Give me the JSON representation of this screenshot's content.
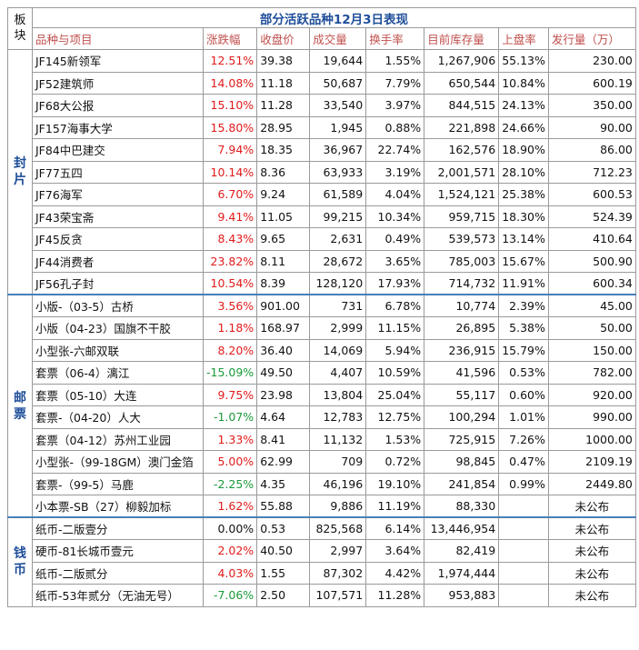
{
  "title": "部分活跃品种12月3日表现",
  "corner_label": "板块",
  "headers": [
    "品种与项目",
    "涨跌幅",
    "收盘价",
    "成交量",
    "换手率",
    "目前库存量",
    "上盘率",
    "发行量（万）"
  ],
  "sections": [
    {
      "label": "封片",
      "rows": [
        {
          "name": "JF145新领军",
          "change": "12.51%",
          "trend": "up",
          "close": "39.38",
          "volume": "19,644",
          "turnover": "1.55%",
          "stock": "1,267,906",
          "listing": "55.13%",
          "issue": "230.00"
        },
        {
          "name": "JF52建筑师",
          "change": "14.08%",
          "trend": "up",
          "close": "11.18",
          "volume": "50,687",
          "turnover": "7.79%",
          "stock": "650,544",
          "listing": "10.84%",
          "issue": "600.19"
        },
        {
          "name": "JF68大公报",
          "change": "15.10%",
          "trend": "up",
          "close": "11.28",
          "volume": "33,540",
          "turnover": "3.97%",
          "stock": "844,515",
          "listing": "24.13%",
          "issue": "350.00"
        },
        {
          "name": "JF157海事大学",
          "change": "15.80%",
          "trend": "up",
          "close": "28.95",
          "volume": "1,945",
          "turnover": "0.88%",
          "stock": "221,898",
          "listing": "24.66%",
          "issue": "90.00"
        },
        {
          "name": "JF84中巴建交",
          "change": "7.94%",
          "trend": "up",
          "close": "18.35",
          "volume": "36,967",
          "turnover": "22.74%",
          "stock": "162,576",
          "listing": "18.90%",
          "issue": "86.00"
        },
        {
          "name": "JF77五四",
          "change": "10.14%",
          "trend": "up",
          "close": "8.36",
          "volume": "63,933",
          "turnover": "3.19%",
          "stock": "2,001,571",
          "listing": "28.10%",
          "issue": "712.23"
        },
        {
          "name": "JF76海军",
          "change": "6.70%",
          "trend": "up",
          "close": "9.24",
          "volume": "61,589",
          "turnover": "4.04%",
          "stock": "1,524,121",
          "listing": "25.38%",
          "issue": "600.53"
        },
        {
          "name": "JF43荣宝斋",
          "change": "9.41%",
          "trend": "up",
          "close": "11.05",
          "volume": "99,215",
          "turnover": "10.34%",
          "stock": "959,715",
          "listing": "18.30%",
          "issue": "524.39"
        },
        {
          "name": "JF45反贪",
          "change": "8.43%",
          "trend": "up",
          "close": "9.65",
          "volume": "2,631",
          "turnover": "0.49%",
          "stock": "539,573",
          "listing": "13.14%",
          "issue": "410.64"
        },
        {
          "name": "JF44消费者",
          "change": "23.82%",
          "trend": "up",
          "close": "8.11",
          "volume": "28,672",
          "turnover": "3.65%",
          "stock": "785,003",
          "listing": "15.67%",
          "issue": "500.90"
        },
        {
          "name": "JF56孔子封",
          "change": "10.54%",
          "trend": "up",
          "close": "8.39",
          "volume": "128,120",
          "turnover": "17.93%",
          "stock": "714,732",
          "listing": "11.91%",
          "issue": "600.34"
        }
      ]
    },
    {
      "label": "邮票",
      "rows": [
        {
          "name": "小版-（03-5）古桥",
          "change": "3.56%",
          "trend": "up",
          "close": "901.00",
          "volume": "731",
          "turnover": "6.78%",
          "stock": "10,774",
          "listing": "2.39%",
          "issue": "45.00"
        },
        {
          "name": "小版（04-23）国旗不干胶",
          "change": "1.18%",
          "trend": "up",
          "close": "168.97",
          "volume": "2,999",
          "turnover": "11.15%",
          "stock": "26,895",
          "listing": "5.38%",
          "issue": "50.00"
        },
        {
          "name": "小型张-六邮双联",
          "change": "8.20%",
          "trend": "up",
          "close": "36.40",
          "volume": "14,069",
          "turnover": "5.94%",
          "stock": "236,915",
          "listing": "15.79%",
          "issue": "150.00"
        },
        {
          "name": "套票（06-4）漓江",
          "change": "-15.09%",
          "trend": "down",
          "close": "49.50",
          "volume": "4,407",
          "turnover": "10.59%",
          "stock": "41,596",
          "listing": "0.53%",
          "issue": "782.00"
        },
        {
          "name": "套票（05-10）大连",
          "change": "9.75%",
          "trend": "up",
          "close": "23.98",
          "volume": "13,804",
          "turnover": "25.04%",
          "stock": "55,117",
          "listing": "0.60%",
          "issue": "920.00"
        },
        {
          "name": "套票-（04-20）人大",
          "change": "-1.07%",
          "trend": "down",
          "close": "4.64",
          "volume": "12,783",
          "turnover": "12.75%",
          "stock": "100,294",
          "listing": "1.01%",
          "issue": "990.00"
        },
        {
          "name": "套票（04-12）苏州工业园",
          "change": "1.33%",
          "trend": "up",
          "close": "8.41",
          "volume": "11,132",
          "turnover": "1.53%",
          "stock": "725,915",
          "listing": "7.26%",
          "issue": "1000.00"
        },
        {
          "name": "小型张-（99-18GM）澳门金箔",
          "change": "5.00%",
          "trend": "up",
          "close": "62.99",
          "volume": "709",
          "turnover": "0.72%",
          "stock": "98,845",
          "listing": "0.47%",
          "issue": "2109.19"
        },
        {
          "name": "套票-（99-5）马鹿",
          "change": "-2.25%",
          "trend": "down",
          "close": "4.35",
          "volume": "46,196",
          "turnover": "19.10%",
          "stock": "241,854",
          "listing": "0.99%",
          "issue": "2449.80"
        },
        {
          "name": "小本票-SB（27）柳毅加标",
          "change": "1.62%",
          "trend": "up",
          "close": "55.88",
          "volume": "9,886",
          "turnover": "11.19%",
          "stock": "88,330",
          "listing": "",
          "issue": "未公布"
        }
      ]
    },
    {
      "label": "钱币",
      "rows": [
        {
          "name": "纸币-二版壹分",
          "change": "0.00%",
          "trend": "flat",
          "close": "0.53",
          "volume": "825,568",
          "turnover": "6.14%",
          "stock": "13,446,954",
          "listing": "",
          "issue": "未公布"
        },
        {
          "name": "硬币-81长城币壹元",
          "change": "2.02%",
          "trend": "up",
          "close": "40.50",
          "volume": "2,997",
          "turnover": "3.64%",
          "stock": "82,419",
          "listing": "",
          "issue": "未公布"
        },
        {
          "name": "纸币-二版贰分",
          "change": "4.03%",
          "trend": "up",
          "close": "1.55",
          "volume": "87,302",
          "turnover": "4.42%",
          "stock": "1,974,444",
          "listing": "",
          "issue": "未公布"
        },
        {
          "name": "纸币-53年贰分（无油无号）",
          "change": "-7.06%",
          "trend": "down",
          "close": "2.50",
          "volume": "107,571",
          "turnover": "11.28%",
          "stock": "953,883",
          "listing": "",
          "issue": "未公布"
        }
      ]
    }
  ]
}
